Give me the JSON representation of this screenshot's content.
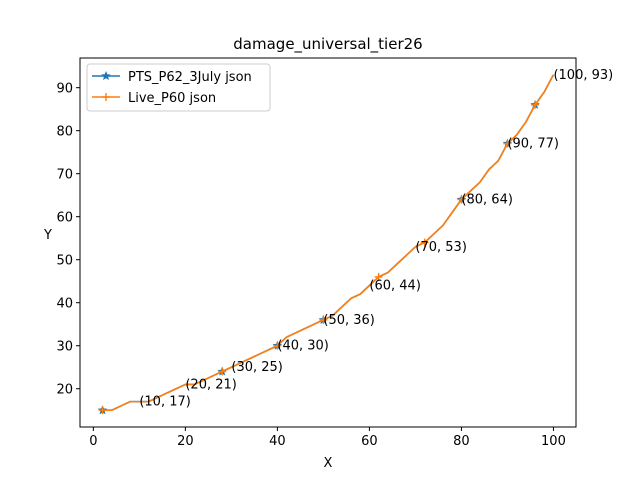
{
  "chart_data": {
    "type": "line",
    "title": "damage_universal_tier26",
    "xlabel": "X",
    "ylabel": "Y",
    "xlim": [
      -2.9,
      104.9
    ],
    "ylim": [
      11.1,
      96.9
    ],
    "xticks": [
      0,
      20,
      40,
      60,
      80,
      100
    ],
    "yticks": [
      20,
      30,
      40,
      50,
      60,
      70,
      80,
      90
    ],
    "grid": false,
    "legend_position": "upper-left",
    "x": [
      2,
      4,
      6,
      8,
      10,
      12,
      14,
      16,
      18,
      20,
      22,
      24,
      26,
      28,
      30,
      32,
      34,
      36,
      38,
      40,
      42,
      44,
      46,
      48,
      50,
      52,
      54,
      56,
      58,
      60,
      62,
      64,
      66,
      68,
      70,
      72,
      74,
      76,
      78,
      80,
      82,
      84,
      86,
      88,
      90,
      92,
      94,
      96,
      98,
      100
    ],
    "series": [
      {
        "name": "PTS_P62_3July json",
        "color": "#1f77b4",
        "marker": "star",
        "y": [
          15,
          15,
          16,
          17,
          17,
          17,
          18,
          19,
          20,
          21,
          21,
          22,
          23,
          24,
          25,
          26,
          27,
          28,
          29,
          30,
          32,
          33,
          34,
          35,
          36,
          37,
          39,
          41,
          42,
          44,
          46,
          47,
          49,
          51,
          53,
          54,
          56,
          58,
          61,
          64,
          66,
          68,
          71,
          73,
          77,
          79,
          82,
          86,
          89,
          93
        ],
        "marker_x": [
          2,
          28,
          40,
          50,
          80,
          90,
          96
        ]
      },
      {
        "name": "Live_P60 json",
        "color": "#ff7f0e",
        "marker": "plus",
        "y": [
          15,
          15,
          16,
          17,
          17,
          17,
          18,
          19,
          20,
          21,
          21,
          22,
          23,
          24,
          25,
          26,
          27,
          28,
          29,
          30,
          32,
          33,
          34,
          35,
          36,
          37,
          39,
          41,
          42,
          44,
          46,
          47,
          49,
          51,
          53,
          54,
          56,
          58,
          61,
          64,
          66,
          68,
          71,
          73,
          77,
          79,
          82,
          86,
          89,
          93
        ],
        "marker_x": [
          2,
          28,
          40,
          50,
          62,
          72,
          80,
          90,
          96
        ]
      }
    ],
    "annotations": [
      {
        "x": 10,
        "y": 17,
        "text": "(10, 17)"
      },
      {
        "x": 20,
        "y": 21,
        "text": "(20, 21)"
      },
      {
        "x": 30,
        "y": 25,
        "text": "(30, 25)"
      },
      {
        "x": 40,
        "y": 30,
        "text": "(40, 30)"
      },
      {
        "x": 50,
        "y": 36,
        "text": "(50, 36)"
      },
      {
        "x": 60,
        "y": 44,
        "text": "(60, 44)"
      },
      {
        "x": 70,
        "y": 53,
        "text": "(70, 53)"
      },
      {
        "x": 80,
        "y": 64,
        "text": "(80, 64)"
      },
      {
        "x": 90,
        "y": 77,
        "text": "(90, 77)"
      },
      {
        "x": 100,
        "y": 93,
        "text": "(100, 93)"
      }
    ]
  }
}
